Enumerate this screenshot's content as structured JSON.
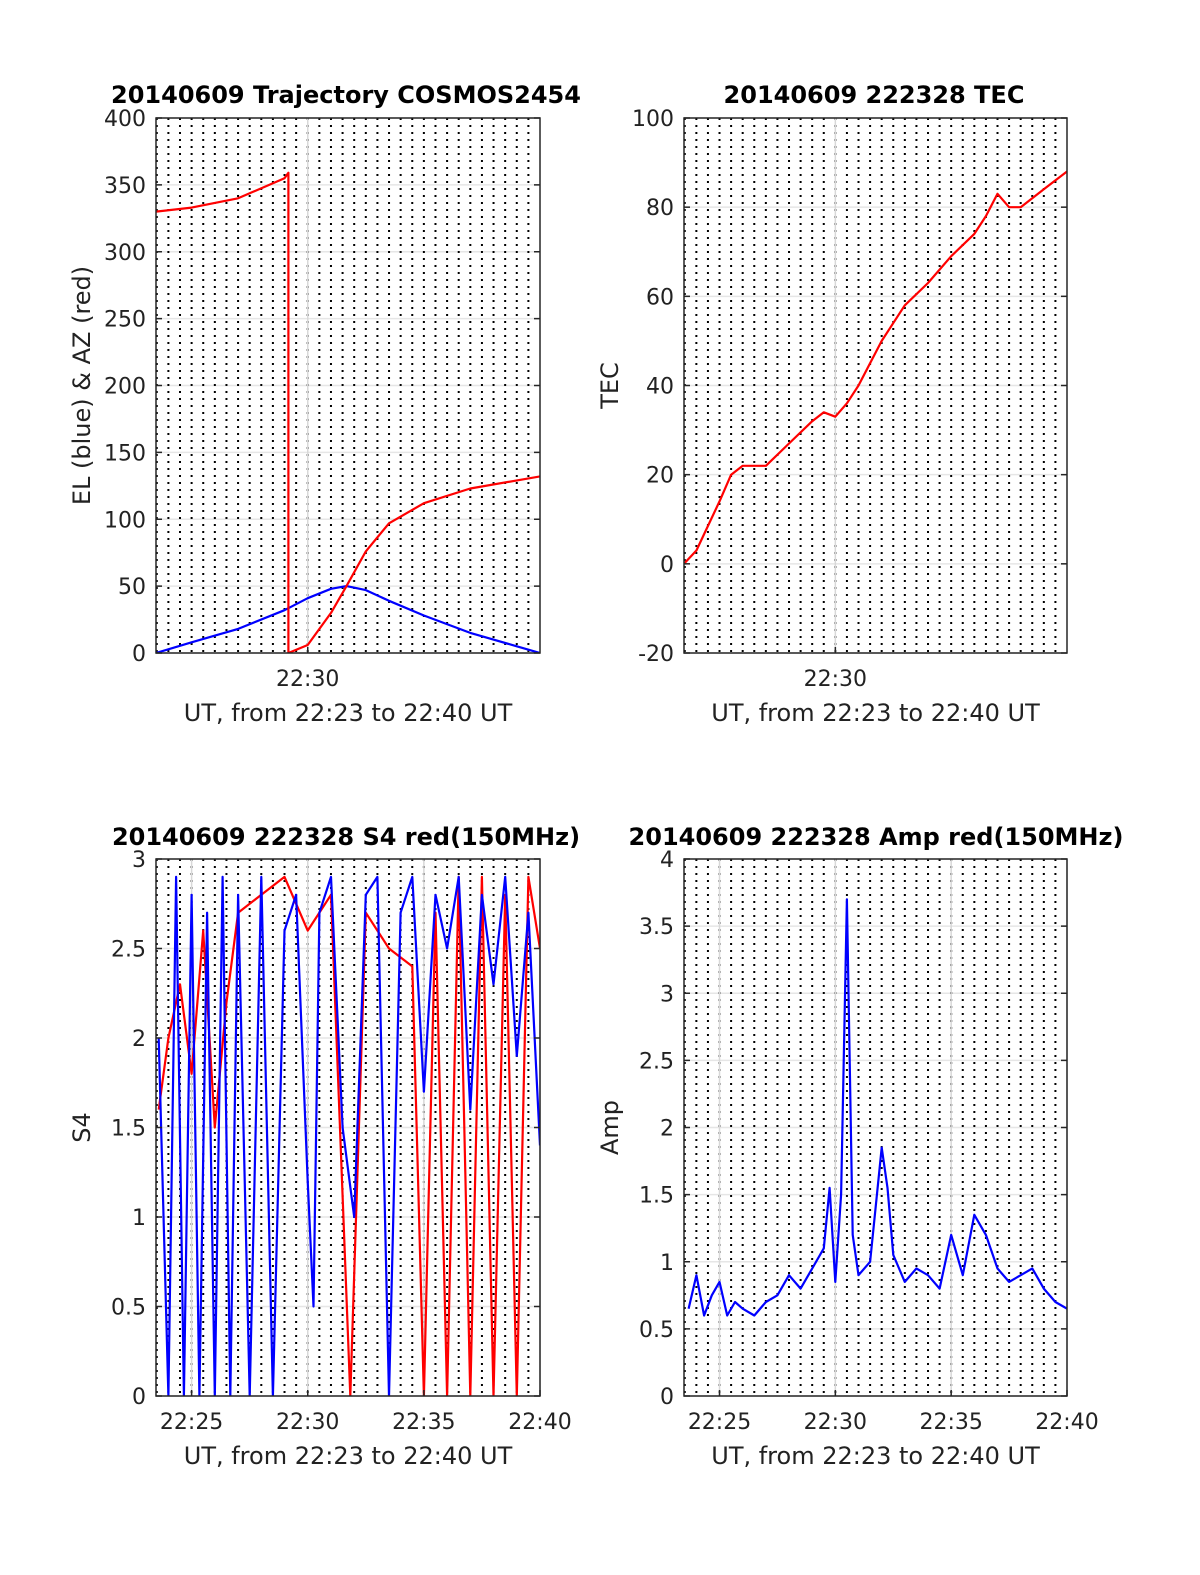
{
  "chart_data": [
    {
      "type": "line",
      "title": "20140609 Trajectory COSMOS2454",
      "xlabel": "UT, from 22:23 to 22:40 UT",
      "ylabel": "EL (blue) & AZ (red)",
      "xlim": [
        "22:23:28",
        "22:40:00"
      ],
      "ylim": [
        0,
        400
      ],
      "yticks": [
        0,
        50,
        100,
        150,
        200,
        250,
        300,
        350,
        400
      ],
      "xtick_labels": [
        {
          "x": "22:30",
          "label": "22:30"
        }
      ],
      "grid": true,
      "series": [
        {
          "color": "#0000ff",
          "x": [
            "22:23:28",
            "22:25:00",
            "22:27:00",
            "22:29:00",
            "22:30:00",
            "22:31:00",
            "22:31:40",
            "22:32:30",
            "22:33:30",
            "22:35:00",
            "22:37:00",
            "22:39:00",
            "22:40:00"
          ],
          "y": [
            0,
            8,
            18,
            32,
            41,
            48,
            50,
            47,
            39,
            28,
            15,
            5,
            0
          ]
        },
        {
          "color": "#ff0000",
          "x": [
            "22:23:28",
            "22:25:00",
            "22:27:00",
            "22:29:00",
            "22:29:10",
            "22:29:10",
            "22:30:00",
            "22:31:00",
            "22:31:40",
            "22:32:30",
            "22:33:30",
            "22:35:00",
            "22:37:00",
            "22:40:00"
          ],
          "y": [
            330,
            333,
            340,
            355,
            359,
            0,
            6,
            30,
            50,
            76,
            97,
            112,
            123,
            132
          ]
        }
      ]
    },
    {
      "type": "line",
      "title": "20140609 222328 TEC",
      "xlabel": "UT, from 22:23 to 22:40 UT",
      "ylabel": "TEC",
      "xlim": [
        "22:23:28",
        "22:40:00"
      ],
      "ylim": [
        -20,
        100
      ],
      "yticks": [
        -20,
        0,
        20,
        40,
        60,
        80,
        100
      ],
      "xtick_labels": [
        {
          "x": "22:30",
          "label": "22:30"
        }
      ],
      "grid": true,
      "series": [
        {
          "color": "#ff0000",
          "x": [
            "22:23:28",
            "22:24:00",
            "22:25:00",
            "22:25:30",
            "22:26:00",
            "22:27:00",
            "22:28:00",
            "22:29:00",
            "22:29:30",
            "22:30:00",
            "22:30:30",
            "22:31:00",
            "22:32:00",
            "22:33:00",
            "22:34:00",
            "22:35:00",
            "22:36:00",
            "22:36:30",
            "22:37:00",
            "22:37:30",
            "22:38:00",
            "22:39:00",
            "22:40:00"
          ],
          "y": [
            0,
            3,
            14,
            20,
            22,
            22,
            27,
            32,
            34,
            33,
            36,
            40,
            50,
            58,
            63,
            69,
            74,
            78,
            83,
            80,
            80,
            84,
            88
          ]
        }
      ]
    },
    {
      "type": "line",
      "title": "20140609 222328 S4 red(150MHz)",
      "xlabel": "UT, from 22:23 to 22:40 UT",
      "ylabel": "S4",
      "xlim": [
        "22:23:28",
        "22:40:00"
      ],
      "ylim": [
        0,
        3
      ],
      "yticks": [
        0,
        0.5,
        1,
        1.5,
        2,
        2.5,
        3
      ],
      "xtick_labels": [
        {
          "x": "22:25",
          "label": "22:25"
        },
        {
          "x": "22:30",
          "label": "22:30"
        },
        {
          "x": "22:35",
          "label": "22:35"
        },
        {
          "x": "22:40",
          "label": "22:40"
        }
      ],
      "grid": true,
      "series": [
        {
          "color": "#ff0000",
          "x": [
            "22:23:35",
            "22:24:00",
            "22:24:30",
            "22:25:00",
            "22:25:30",
            "22:26:00",
            "22:26:30",
            "22:27:00",
            "22:28:00",
            "22:29:00",
            "22:30:00",
            "22:31:00",
            "22:31:50",
            "22:32:30",
            "22:33:30",
            "22:34:30",
            "22:35:00",
            "22:35:30",
            "22:36:00",
            "22:36:30",
            "22:37:00",
            "22:37:30",
            "22:38:00",
            "22:38:30",
            "22:39:00",
            "22:39:30",
            "22:40:00"
          ],
          "y": [
            1.6,
            2.0,
            2.3,
            1.8,
            2.6,
            1.5,
            2.2,
            2.7,
            2.8,
            2.9,
            2.6,
            2.8,
            0,
            2.7,
            2.5,
            2.4,
            0,
            2.7,
            0,
            2.9,
            0,
            2.9,
            0,
            2.8,
            0,
            2.9,
            2.5
          ]
        },
        {
          "color": "#0000ff",
          "x": [
            "22:23:35",
            "22:24:00",
            "22:24:20",
            "22:24:40",
            "22:25:00",
            "22:25:20",
            "22:25:40",
            "22:26:00",
            "22:26:20",
            "22:26:40",
            "22:27:00",
            "22:27:30",
            "22:28:00",
            "22:28:30",
            "22:29:00",
            "22:29:30",
            "22:30:00",
            "22:30:15",
            "22:30:30",
            "22:31:00",
            "22:31:30",
            "22:32:00",
            "22:32:30",
            "22:33:00",
            "22:33:30",
            "22:34:00",
            "22:34:30",
            "22:35:00",
            "22:35:30",
            "22:36:00",
            "22:36:30",
            "22:37:00",
            "22:37:30",
            "22:38:00",
            "22:38:30",
            "22:39:00",
            "22:39:30",
            "22:40:00"
          ],
          "y": [
            2.0,
            0,
            2.9,
            0,
            2.8,
            0,
            2.7,
            0,
            2.9,
            0,
            2.8,
            0,
            2.9,
            0,
            2.6,
            2.8,
            1.2,
            0.5,
            2.7,
            2.9,
            1.5,
            1.0,
            2.8,
            2.9,
            0,
            2.7,
            2.9,
            1.7,
            2.8,
            2.5,
            2.9,
            1.6,
            2.8,
            2.3,
            2.9,
            1.9,
            2.7,
            1.4
          ]
        }
      ]
    },
    {
      "type": "line",
      "title": "20140609 222328 Amp red(150MHz)",
      "xlabel": "UT, from 22:23 to 22:40 UT",
      "ylabel": "Amp",
      "xlim": [
        "22:23:28",
        "22:40:00"
      ],
      "ylim": [
        0,
        4
      ],
      "yticks": [
        0,
        0.5,
        1,
        1.5,
        2,
        2.5,
        3,
        3.5,
        4
      ],
      "xtick_labels": [
        {
          "x": "22:25",
          "label": "22:25"
        },
        {
          "x": "22:30",
          "label": "22:30"
        },
        {
          "x": "22:35",
          "label": "22:35"
        },
        {
          "x": "22:40",
          "label": "22:40"
        }
      ],
      "grid": true,
      "series": [
        {
          "color": "#0000ff",
          "x": [
            "22:23:40",
            "22:24:00",
            "22:24:20",
            "22:24:40",
            "22:25:00",
            "22:25:20",
            "22:25:40",
            "22:26:00",
            "22:26:30",
            "22:27:00",
            "22:27:30",
            "22:28:00",
            "22:28:30",
            "22:29:00",
            "22:29:30",
            "22:29:45",
            "22:30:00",
            "22:30:15",
            "22:30:30",
            "22:30:45",
            "22:31:00",
            "22:31:30",
            "22:32:00",
            "22:32:15",
            "22:32:30",
            "22:33:00",
            "22:33:30",
            "22:34:00",
            "22:34:30",
            "22:35:00",
            "22:35:30",
            "22:36:00",
            "22:36:30",
            "22:37:00",
            "22:37:30",
            "22:38:00",
            "22:38:30",
            "22:39:00",
            "22:39:30",
            "22:40:00"
          ],
          "y": [
            0.65,
            0.9,
            0.6,
            0.75,
            0.85,
            0.6,
            0.7,
            0.65,
            0.6,
            0.7,
            0.75,
            0.9,
            0.8,
            0.95,
            1.1,
            1.55,
            0.85,
            1.5,
            3.7,
            1.2,
            0.9,
            1.0,
            1.85,
            1.55,
            1.05,
            0.85,
            0.95,
            0.9,
            0.8,
            1.2,
            0.9,
            1.35,
            1.2,
            0.95,
            0.85,
            0.9,
            0.95,
            0.8,
            0.7,
            0.65
          ]
        }
      ]
    }
  ]
}
